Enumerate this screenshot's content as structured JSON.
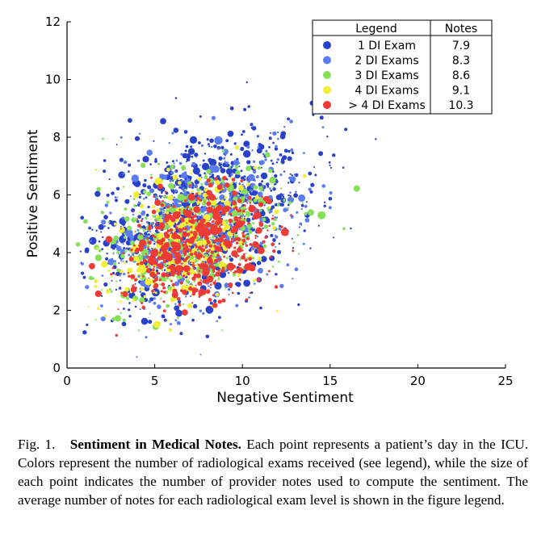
{
  "chart_data": {
    "type": "scatter",
    "title": "",
    "xlabel": "Negative Sentiment",
    "ylabel": "Positive Sentiment",
    "xlim": [
      0,
      25
    ],
    "ylim": [
      0,
      12
    ],
    "xticks": [
      0,
      5,
      10,
      15,
      20,
      25
    ],
    "yticks": [
      0,
      2,
      4,
      6,
      8,
      10,
      12
    ],
    "grid": false,
    "legend_position": "top-right",
    "legend": {
      "header_label": "Legend",
      "header_notes": "Notes",
      "entries": [
        {
          "label": "1 DI Exam",
          "notes": "7.9",
          "color": "#2a42c8"
        },
        {
          "label": "2 DI Exams",
          "notes": "8.3",
          "color": "#5b7df0"
        },
        {
          "label": "3 DI Exams",
          "notes": "8.6",
          "color": "#86e05a"
        },
        {
          "label": "4 DI Exams",
          "notes": "9.1",
          "color": "#f3ee3a"
        },
        {
          "label": "> 4 DI Exams",
          "notes": "10.3",
          "color": "#ee3b36"
        }
      ]
    },
    "series": [
      {
        "name": "1 DI Exam",
        "color": "#2a42c8",
        "center": [
          7.5,
          5.2
        ],
        "spread": [
          3.2,
          1.55
        ],
        "corr": 0.32,
        "count": 900
      },
      {
        "name": "2 DI Exams",
        "color": "#5b7df0",
        "center": [
          7.4,
          4.9
        ],
        "spread": [
          2.9,
          1.4
        ],
        "corr": 0.33,
        "count": 500
      },
      {
        "name": "3 DI Exams",
        "color": "#86e05a",
        "center": [
          7.2,
          4.6
        ],
        "spread": [
          2.6,
          1.25
        ],
        "corr": 0.34,
        "count": 450
      },
      {
        "name": "4 DI Exams",
        "color": "#f3ee3a",
        "center": [
          6.6,
          4.3
        ],
        "spread": [
          2.1,
          1.1
        ],
        "corr": 0.3,
        "count": 350
      },
      {
        "name": "> 4 DI Exams",
        "color": "#ee3b36",
        "center": [
          7.3,
          4.2
        ],
        "spread": [
          2.0,
          0.95
        ],
        "corr": 0.3,
        "count": 600
      }
    ]
  },
  "caption": {
    "label": "Fig. 1.",
    "title": "Sentiment in Medical Notes.",
    "body": "Each point represents a patient’s day in the ICU. Colors represent the number of radiological exams received (see legend), while the size of each point indicates the number of provider notes used to compute the sentiment. The average number of notes for each radiological exam level is shown in the figure legend."
  }
}
